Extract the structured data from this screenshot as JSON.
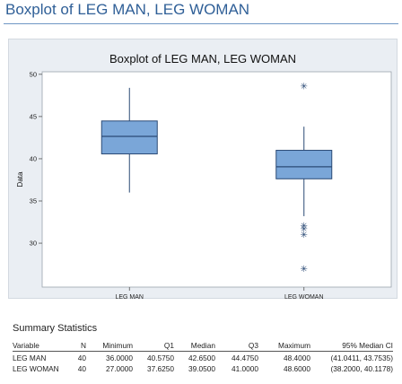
{
  "page": {
    "title": "Boxplot of LEG MAN, LEG WOMAN"
  },
  "chart_data": {
    "type": "boxplot",
    "title": "Boxplot of LEG MAN, LEG WOMAN",
    "xlabel": "",
    "ylabel": "Data",
    "ylim": [
      24.8,
      50.3
    ],
    "yticks": [
      30,
      35,
      40,
      45,
      50
    ],
    "grid": false,
    "box_color": "#7aa6d8",
    "outline_color": "#2b4a75",
    "categories": [
      "LEG MAN",
      "LEG WOMAN"
    ],
    "series": [
      {
        "whisker_low": 36.0,
        "q1": 40.575,
        "median": 42.65,
        "q3": 44.475,
        "whisker_high": 48.4,
        "outliers": []
      },
      {
        "whisker_low": 33.2,
        "q1": 37.625,
        "median": 39.05,
        "q3": 41.0,
        "whisker_high": 43.8,
        "outliers": [
          48.6,
          32.1,
          31.7,
          31.0,
          27.0
        ]
      }
    ]
  },
  "summary": {
    "title": "Summary Statistics",
    "columns": [
      "Variable",
      "N",
      "Minimum",
      "Q1",
      "Median",
      "Q3",
      "Maximum",
      "95% Median CI"
    ],
    "rows": [
      [
        "LEG MAN",
        "40",
        "36.0000",
        "40.5750",
        "42.6500",
        "44.4750",
        "48.4000",
        "(41.0411, 43.7535)"
      ],
      [
        "LEG WOMAN",
        "40",
        "27.0000",
        "37.6250",
        "39.0500",
        "41.0000",
        "48.6000",
        "(38.2000, 40.1178)"
      ]
    ]
  }
}
